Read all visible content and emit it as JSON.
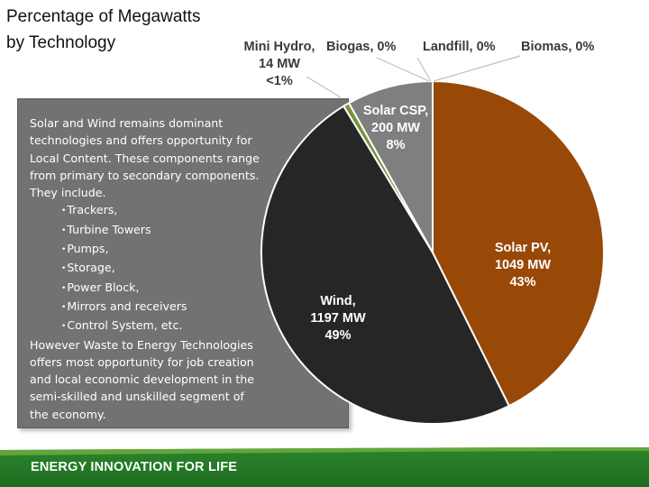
{
  "title": "Percentage of Megawatts\nby Technology",
  "info": {
    "intro": "Solar and Wind remains dominant technologies and offers opportunity for Local Content. These components range from  primary to secondary components. They include.",
    "items": [
      "Trackers,",
      "Turbine Towers",
      "Pumps,",
      "Storage,",
      "Power Block,",
      "Mirrors and receivers",
      "Control System, etc."
    ],
    "outro": "However Waste to Energy Technologies offers most opportunity for job creation and local economic development in the semi-skilled and unskilled segment of the economy."
  },
  "chart_data": {
    "type": "pie",
    "slices": [
      {
        "name": "Solar PV",
        "mw_label": "1049 MW",
        "pct_label": "43%",
        "value": 1049,
        "color": "#984807"
      },
      {
        "name": "Wind",
        "mw_label": "1197 MW",
        "pct_label": "49%",
        "value": 1197,
        "color": "#262626"
      },
      {
        "name": "Mini Hydro",
        "mw_label": "14 MW",
        "pct_label": "<1%",
        "value": 14,
        "color": "#77933c"
      },
      {
        "name": "Solar CSP",
        "mw_label": "200 MW",
        "pct_label": "8%",
        "value": 200,
        "color": "#7f7f7f"
      },
      {
        "name": "Biogas",
        "mw_label": "",
        "pct_label": "0%",
        "value": 0,
        "color": "#d9d9d9"
      },
      {
        "name": "Landfill",
        "mw_label": "",
        "pct_label": "0%",
        "value": 0,
        "color": "#d9d9d9"
      },
      {
        "name": "Biomas",
        "mw_label": "",
        "pct_label": "0%",
        "value": 0,
        "color": "#d9d9d9"
      }
    ],
    "label_text": {
      "solar_pv": [
        "Solar PV,",
        "1049 MW",
        "43%"
      ],
      "wind": [
        "Wind,",
        "1197 MW",
        "49%"
      ],
      "solar_csp": [
        "Solar CSP,",
        "200 MW",
        "8%"
      ],
      "mini_hydro": [
        "Mini Hydro,",
        "14 MW",
        "<1%"
      ],
      "biogas": "Biogas, 0%",
      "landfill": "Landfill, 0%",
      "biomas": "Biomas, 0%"
    }
  },
  "footer": {
    "text": "ENERGY INNOVATION FOR LIFE",
    "color": "#2d8a2e"
  }
}
